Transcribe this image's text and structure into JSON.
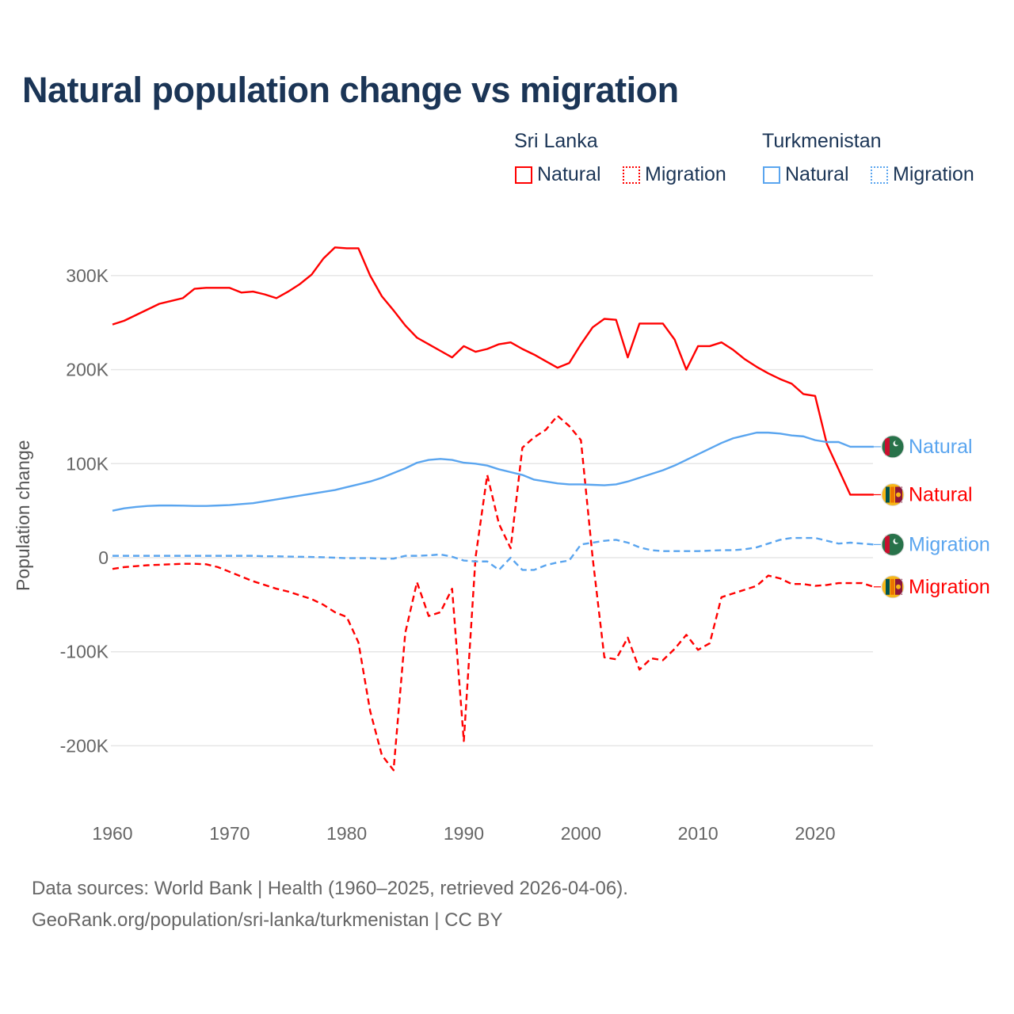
{
  "title": "Natural population change vs migration",
  "legend": {
    "groups": [
      {
        "country": "Sri Lanka",
        "items": [
          {
            "label": "Natural",
            "style": "solid"
          },
          {
            "label": "Migration",
            "style": "dotted"
          }
        ],
        "color": "#ff0000"
      },
      {
        "country": "Turkmenistan",
        "items": [
          {
            "label": "Natural",
            "style": "solid"
          },
          {
            "label": "Migration",
            "style": "dotted"
          }
        ],
        "color": "#5aa5ef"
      }
    ]
  },
  "footer": {
    "line1": "Data sources: World Bank | Health (1960–2025, retrieved 2026-04-06).",
    "line2": "GeoRank.org/population/sri-lanka/turkmenistan | CC BY"
  },
  "chart_data": {
    "type": "line",
    "title": "Natural population change vs migration",
    "xlabel": "",
    "ylabel": "Population change",
    "xlim": [
      1960,
      2025
    ],
    "ylim": [
      -260000,
      340000
    ],
    "x_ticks": [
      1960,
      1970,
      1980,
      1990,
      2000,
      2010,
      2020
    ],
    "x_tick_labels": [
      "1960",
      "1970",
      "1980",
      "1990",
      "2000",
      "2010",
      "2020"
    ],
    "y_ticks": [
      -200000,
      -100000,
      0,
      100000,
      200000,
      300000
    ],
    "y_tick_labels": [
      "-200K",
      "-100K",
      "0",
      "100K",
      "200K",
      "300K"
    ],
    "grid": true,
    "legend_position": "top-right",
    "x": [
      1960,
      1961,
      1962,
      1963,
      1964,
      1965,
      1966,
      1967,
      1968,
      1969,
      1970,
      1971,
      1972,
      1973,
      1974,
      1975,
      1976,
      1977,
      1978,
      1979,
      1980,
      1981,
      1982,
      1983,
      1984,
      1985,
      1986,
      1987,
      1988,
      1989,
      1990,
      1991,
      1992,
      1993,
      1994,
      1995,
      1996,
      1997,
      1998,
      1999,
      2000,
      2001,
      2002,
      2003,
      2004,
      2005,
      2006,
      2007,
      2008,
      2009,
      2010,
      2011,
      2012,
      2013,
      2014,
      2015,
      2016,
      2017,
      2018,
      2019,
      2020,
      2021,
      2022,
      2023,
      2024,
      2025
    ],
    "series": [
      {
        "name": "Sri Lanka Natural",
        "end_label": "Natural",
        "color": "#ff0000",
        "dash": false,
        "flag": "sri-lanka",
        "values": [
          248,
          252,
          258,
          264,
          270,
          273,
          276,
          286,
          287,
          287,
          287,
          282,
          283,
          280,
          276,
          283,
          291,
          301,
          318,
          330,
          329,
          329,
          300,
          278,
          263,
          247,
          234,
          227,
          220,
          213,
          225,
          219,
          222,
          227,
          229,
          222,
          216,
          209,
          202,
          207,
          227,
          245,
          254,
          253,
          213,
          249,
          249,
          249,
          232,
          200,
          225,
          225,
          229,
          221,
          211,
          203,
          196,
          190,
          185,
          174,
          172,
          121,
          94,
          67,
          67,
          67
        ]
      },
      {
        "name": "Sri Lanka Migration",
        "end_label": "Migration",
        "color": "#ff0000",
        "dash": true,
        "flag": "sri-lanka",
        "values": [
          -12,
          -10,
          -9,
          -8,
          -7.5,
          -7,
          -6.5,
          -6.5,
          -7,
          -10,
          -15,
          -20,
          -25,
          -29,
          -33,
          -36,
          -40,
          -44,
          -50,
          -58,
          -63,
          -90,
          -163,
          -210,
          -226,
          -80,
          -26,
          -62,
          -58,
          -33,
          -195,
          0,
          88,
          36,
          10,
          117,
          128,
          136,
          151,
          140,
          125,
          0,
          -106,
          -108,
          -85,
          -119,
          -107,
          -109,
          -97,
          -82,
          -98,
          -91,
          -42,
          -38,
          -34,
          -30,
          -19,
          -22,
          -28,
          -28,
          -30,
          -29,
          -27,
          -27,
          -27,
          -31
        ]
      },
      {
        "name": "Turkmenistan Natural",
        "end_label": "Natural",
        "color": "#5aa5ef",
        "dash": false,
        "flag": "turkmenistan",
        "values": [
          50,
          52.5,
          54,
          55,
          55.5,
          55.5,
          55.3,
          55,
          55,
          55.5,
          56,
          57,
          58,
          60,
          62,
          64,
          66,
          68,
          70,
          72,
          75,
          78,
          81,
          85,
          90,
          95,
          101,
          104,
          105,
          104,
          101,
          100,
          98,
          94,
          91,
          88,
          83,
          81,
          79,
          78,
          78,
          77.5,
          77,
          78,
          81,
          85,
          89,
          93,
          98,
          104,
          110,
          116,
          122,
          127,
          130,
          133,
          133,
          132,
          130,
          129,
          125,
          123,
          123,
          118,
          118,
          118
        ]
      },
      {
        "name": "Turkmenistan Migration",
        "end_label": "Migration",
        "color": "#5aa5ef",
        "dash": true,
        "flag": "turkmenistan",
        "values": [
          2,
          2,
          2,
          2,
          2,
          2,
          2,
          2,
          2,
          2,
          2,
          2,
          2,
          1.5,
          1.5,
          1.2,
          1,
          0.8,
          0.5,
          0,
          -0.5,
          -0.5,
          -0.5,
          -1,
          -1,
          2,
          2,
          2.5,
          3.5,
          1,
          -3,
          -4,
          -4,
          -13,
          0,
          -13,
          -13,
          -8,
          -5,
          -3,
          14,
          16,
          18,
          19,
          16,
          11,
          8,
          7,
          7,
          7,
          7,
          7.5,
          8,
          8,
          9,
          11,
          15,
          19,
          21,
          21,
          21,
          18,
          15,
          16,
          15,
          14
        ]
      }
    ],
    "value_unit": "thousands"
  }
}
